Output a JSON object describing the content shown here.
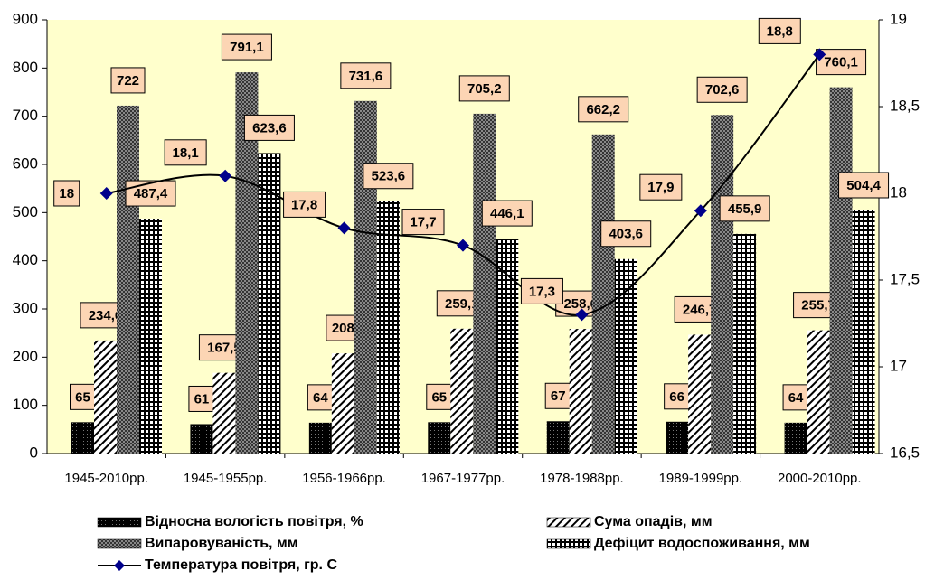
{
  "chart_data": {
    "type": "bar",
    "categories": [
      "1945-2010рр.",
      "1945-1955рр.",
      "1956-1966рр.",
      "1967-1977рр.",
      "1978-1988рр.",
      "1989-1999рр.",
      "2000-2010рр."
    ],
    "series": [
      {
        "name": "Відносна вологість повітря, %",
        "values": [
          65,
          61,
          64,
          65,
          67,
          66,
          64
        ]
      },
      {
        "name": "Сума опадів, мм",
        "values": [
          234.6,
          167.5,
          208,
          259.1,
          258.6,
          246.7,
          255.7
        ],
        "value_labels": [
          "234,6",
          "167,5",
          "208",
          "259,1",
          "258,6",
          "246,7",
          "255,7"
        ]
      },
      {
        "name": "Випаровуваність, мм",
        "values": [
          722,
          791.1,
          731.6,
          705.2,
          662.2,
          702.6,
          760.1
        ],
        "value_labels": [
          "722",
          "791,1",
          "731,6",
          "705,2",
          "662,2",
          "702,6",
          "760,1"
        ]
      },
      {
        "name": "Дефіцит водоспоживання, мм",
        "values": [
          487.4,
          623.6,
          523.6,
          446.1,
          403.6,
          455.9,
          504.4
        ],
        "value_labels": [
          "487,4",
          "623,6",
          "523,6",
          "446,1",
          "403,6",
          "455,9",
          "504,4"
        ]
      },
      {
        "name": "Температура повітря, гр. С",
        "type": "line",
        "axis": "y2",
        "color": "#00008b",
        "values": [
          18,
          18.1,
          17.8,
          17.7,
          17.3,
          17.9,
          18.8
        ],
        "value_labels": [
          "18",
          "18,1",
          "17,8",
          "17,7",
          "17,3",
          "17,9",
          "18,8"
        ]
      }
    ],
    "ylim": [
      0,
      900
    ],
    "yticks": [
      0,
      100,
      200,
      300,
      400,
      500,
      600,
      700,
      800,
      900
    ],
    "y2lim": [
      16.5,
      19
    ],
    "y2ticks": [
      {
        "value": 16.5,
        "label": "16,5"
      },
      17,
      {
        "value": 17.5,
        "label": "17,5"
      },
      18,
      {
        "value": 18.5,
        "label": "18,5"
      },
      19
    ]
  }
}
